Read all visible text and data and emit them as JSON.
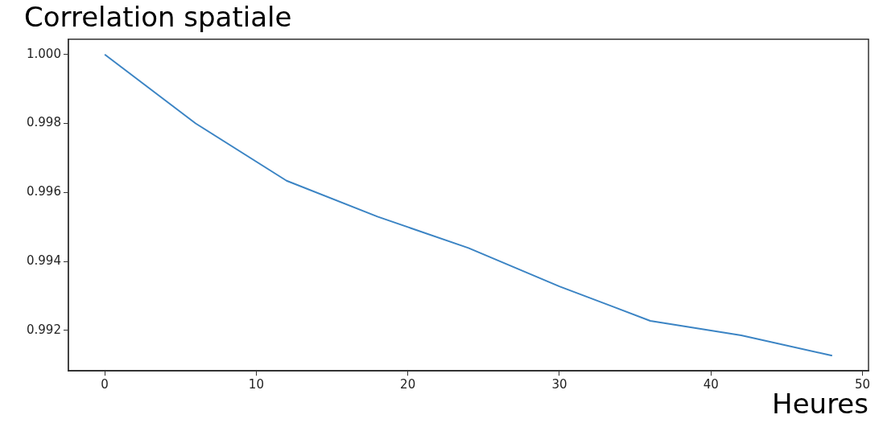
{
  "chart_data": {
    "type": "line",
    "title": "Correlation spatiale",
    "xlabel": "Heures",
    "x": [
      0,
      6,
      12,
      18,
      24,
      30,
      36,
      42,
      48
    ],
    "series": [
      {
        "color": "#3b84c4",
        "values": [
          1.0,
          0.998,
          0.99634,
          0.9953,
          0.99439,
          0.99328,
          0.99228,
          0.99186,
          0.99127
        ]
      }
    ],
    "xlim": [
      -2.4,
      50.4
    ],
    "xticks": [
      0,
      10,
      20,
      30,
      40,
      50
    ],
    "ylim": [
      0.99083,
      1.00044
    ],
    "yticks": [
      {
        "value": 0.992,
        "label": "0.992"
      },
      {
        "value": 0.994,
        "label": "0.994"
      },
      {
        "value": 0.996,
        "label": "0.996"
      },
      {
        "value": 0.998,
        "label": "0.998"
      },
      {
        "value": 1.0,
        "label": "1.000"
      }
    ],
    "grid": false,
    "legend": false,
    "marker": "none",
    "line_style": "solid"
  }
}
